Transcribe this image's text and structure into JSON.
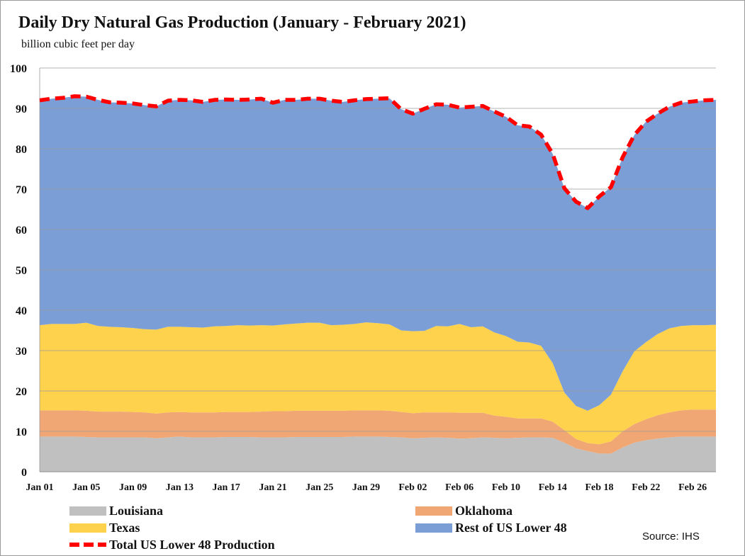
{
  "chart_data": {
    "type": "area",
    "title": "Daily Dry Natural Gas Production (January - February 2021)",
    "ylabel": "billion  cubic feet per day",
    "ylim": [
      0,
      100
    ],
    "yticks": [
      "0",
      "10",
      "20",
      "30",
      "40",
      "50",
      "60",
      "70",
      "80",
      "90",
      "100"
    ],
    "grid": true,
    "legend_position": "bottom",
    "source": "Source: IHS",
    "x": [
      "Jan 01",
      "Jan 02",
      "Jan 03",
      "Jan 04",
      "Jan 05",
      "Jan 06",
      "Jan 07",
      "Jan 08",
      "Jan 09",
      "Jan 10",
      "Jan 11",
      "Jan 12",
      "Jan 13",
      "Jan 14",
      "Jan 15",
      "Jan 16",
      "Jan 17",
      "Jan 18",
      "Jan 19",
      "Jan 20",
      "Jan 21",
      "Jan 22",
      "Jan 23",
      "Jan 24",
      "Jan 25",
      "Jan 26",
      "Jan 27",
      "Jan 28",
      "Jan 29",
      "Jan 30",
      "Jan 31",
      "Feb 01",
      "Feb 02",
      "Feb 03",
      "Feb 04",
      "Feb 05",
      "Feb 06",
      "Feb 07",
      "Feb 08",
      "Feb 09",
      "Feb 10",
      "Feb 11",
      "Feb 12",
      "Feb 13",
      "Feb 14",
      "Feb 15",
      "Feb 16",
      "Feb 17",
      "Feb 18",
      "Feb 19",
      "Feb 20",
      "Feb 21",
      "Feb 22",
      "Feb 23",
      "Feb 24",
      "Feb 25",
      "Feb 26",
      "Feb 27",
      "Feb 28"
    ],
    "xtick_labels": [
      "Jan 01",
      "Jan 05",
      "Jan 09",
      "Jan 13",
      "Jan 17",
      "Jan 21",
      "Jan 25",
      "Jan 29",
      "Feb 02",
      "Feb 06",
      "Feb 10",
      "Feb 14",
      "Feb 18",
      "Feb 22",
      "Feb 26"
    ],
    "series": [
      {
        "name": "Louisiana",
        "color": "#c0c0c0",
        "values": [
          8.7,
          8.7,
          8.7,
          8.7,
          8.6,
          8.5,
          8.5,
          8.5,
          8.5,
          8.5,
          8.3,
          8.5,
          8.7,
          8.5,
          8.5,
          8.5,
          8.6,
          8.6,
          8.6,
          8.5,
          8.5,
          8.5,
          8.6,
          8.6,
          8.6,
          8.6,
          8.6,
          8.7,
          8.7,
          8.7,
          8.6,
          8.5,
          8.3,
          8.4,
          8.5,
          8.4,
          8.2,
          8.3,
          8.5,
          8.4,
          8.3,
          8.4,
          8.5,
          8.5,
          8.4,
          7.2,
          5.8,
          5.1,
          4.5,
          4.5,
          6.0,
          7.2,
          7.8,
          8.2,
          8.5,
          8.7,
          8.7,
          8.7,
          8.7
        ]
      },
      {
        "name": "Oklahoma",
        "color": "#f0a774",
        "values": [
          6.5,
          6.5,
          6.5,
          6.5,
          6.5,
          6.4,
          6.4,
          6.4,
          6.3,
          6.2,
          6.1,
          6.2,
          6.1,
          6.2,
          6.2,
          6.2,
          6.2,
          6.2,
          6.2,
          6.4,
          6.5,
          6.5,
          6.5,
          6.5,
          6.5,
          6.5,
          6.5,
          6.5,
          6.5,
          6.5,
          6.5,
          6.3,
          6.2,
          6.3,
          6.2,
          6.3,
          6.4,
          6.3,
          6.1,
          5.5,
          5.3,
          4.8,
          4.7,
          4.7,
          4.0,
          3.1,
          2.3,
          2.0,
          2.3,
          3.0,
          4.0,
          4.6,
          5.2,
          5.8,
          6.2,
          6.5,
          6.7,
          6.7,
          6.7
        ]
      },
      {
        "name": "Texas",
        "color": "#ffd24d",
        "values": [
          21.1,
          21.4,
          21.4,
          21.4,
          21.8,
          21.2,
          21.0,
          20.9,
          20.8,
          20.6,
          20.8,
          21.2,
          21.1,
          21.1,
          21.0,
          21.3,
          21.3,
          21.5,
          21.4,
          21.4,
          21.2,
          21.5,
          21.6,
          21.8,
          21.8,
          21.2,
          21.3,
          21.4,
          21.8,
          21.6,
          21.4,
          20.2,
          20.3,
          20.2,
          21.4,
          21.3,
          22.0,
          21.2,
          21.4,
          20.6,
          20.0,
          19.0,
          18.8,
          18.0,
          14.5,
          9.3,
          8.2,
          8.0,
          9.7,
          11.6,
          14.9,
          18.0,
          19.1,
          20.1,
          20.8,
          20.9,
          20.9,
          20.9,
          21.0
        ]
      },
      {
        "name": "Rest of US Lower 48",
        "color": "#7b9ed6",
        "values": [
          55.7,
          55.8,
          56.0,
          56.4,
          56.0,
          56.0,
          55.6,
          55.6,
          55.6,
          55.5,
          55.3,
          56.0,
          56.2,
          56.2,
          55.9,
          56.1,
          56.1,
          55.8,
          56.0,
          56.1,
          55.2,
          55.6,
          55.4,
          55.5,
          55.5,
          55.6,
          55.2,
          55.4,
          55.3,
          55.6,
          56.0,
          54.8,
          53.9,
          55.0,
          54.9,
          54.9,
          53.6,
          54.6,
          54.6,
          54.7,
          54.3,
          53.6,
          53.5,
          52.3,
          51.8,
          50.6,
          50.6,
          50.2,
          51.7,
          51.4,
          53.0,
          53.6,
          54.6,
          54.6,
          54.9,
          55.3,
          55.4,
          55.7,
          55.7
        ]
      },
      {
        "name": "Total US Lower 48 Production",
        "color": "#ff0000",
        "style": "dashed",
        "values": [
          92.0,
          92.4,
          92.6,
          93.0,
          92.9,
          92.1,
          91.5,
          91.4,
          91.2,
          90.8,
          90.5,
          91.9,
          92.1,
          92.0,
          91.6,
          92.1,
          92.2,
          92.1,
          92.2,
          92.4,
          91.4,
          92.1,
          92.1,
          92.4,
          92.4,
          91.9,
          91.6,
          92.0,
          92.3,
          92.4,
          92.5,
          89.8,
          88.7,
          89.9,
          91.0,
          90.9,
          90.2,
          90.4,
          90.6,
          89.2,
          87.9,
          85.8,
          85.5,
          83.5,
          78.7,
          70.2,
          66.9,
          65.3,
          68.2,
          70.5,
          77.9,
          83.4,
          86.7,
          88.7,
          90.4,
          91.4,
          91.7,
          92.0,
          92.1
        ]
      }
    ]
  }
}
